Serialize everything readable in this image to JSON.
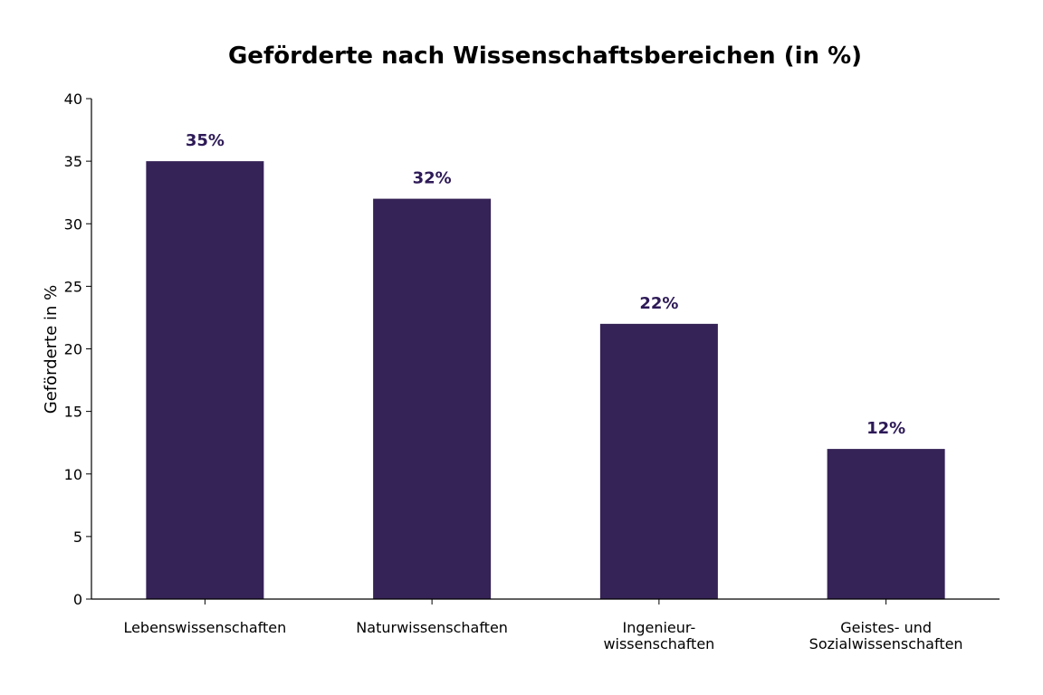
{
  "chart_data": {
    "type": "bar",
    "title": "Geförderte nach Wissenschaftsbereichen (in %)",
    "xlabel": "",
    "ylabel": "Geförderte in %",
    "ylim": [
      0,
      40
    ],
    "yticks": [
      0,
      5,
      10,
      15,
      20,
      25,
      30,
      35,
      40
    ],
    "categories": [
      [
        "Lebenswissenschaften"
      ],
      [
        "Naturwissenschaften"
      ],
      [
        "Ingenieur-",
        "wissenschaften"
      ],
      [
        "Geistes- und",
        "Sozialwissenschaften"
      ]
    ],
    "values": [
      35,
      32,
      22,
      12
    ],
    "data_labels": [
      "35%",
      "32%",
      "22%",
      "12%"
    ],
    "bar_color": "#352256",
    "label_color": "#2d1a57",
    "grid": false,
    "legend": "none"
  }
}
